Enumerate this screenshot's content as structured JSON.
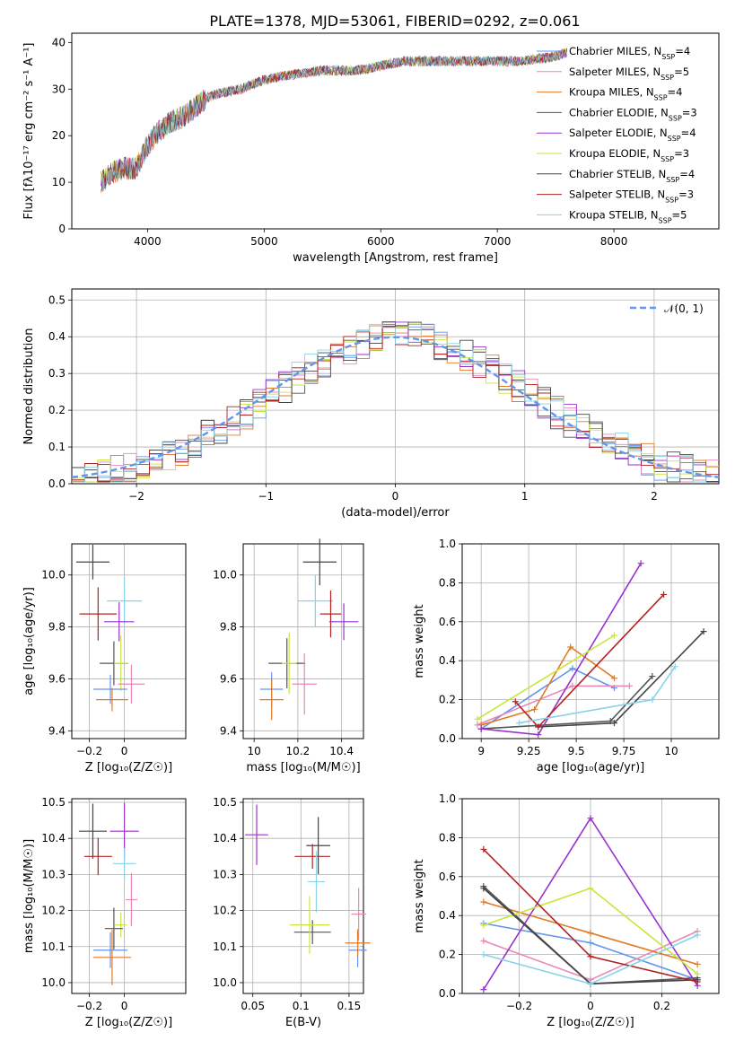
{
  "figure": {
    "title": "PLATE=1378, MJD=53061, FIBERID=0292, z=0.061"
  },
  "chart_data": [
    {
      "id": "spectrum",
      "type": "line",
      "xlabel": "wavelength [Angstrom, rest frame]",
      "ylabel": "Flux [fλ10⁻¹⁷ erg cm⁻² s⁻¹ A⁻¹]",
      "xlim": [
        3350,
        8900
      ],
      "ylim": [
        0,
        42
      ],
      "xticks": [
        4000,
        5000,
        6000,
        7000,
        8000
      ],
      "yticks": [
        0,
        10,
        20,
        30,
        40
      ],
      "grid": false,
      "legend_position": "lower-right",
      "x": [
        3600,
        3700,
        3800,
        3900,
        4000,
        4100,
        4200,
        4300,
        4400,
        4500,
        4600,
        4800,
        5000,
        5200,
        5500,
        5800,
        6000,
        6200,
        6500,
        6800,
        7000,
        7200,
        7500,
        7600
      ],
      "series": [
        {
          "name": "Chabrier MILES, N_SSP=4",
          "color": "#6495ed"
        },
        {
          "name": "Salpeter MILES, N_SSP=5",
          "color": "#e887b8"
        },
        {
          "name": "Kroupa MILES, N_SSP=4",
          "color": "#e07b28"
        },
        {
          "name": "Chabrier ELODIE, N_SSP=3",
          "color": "#555555"
        },
        {
          "name": "Salpeter ELODIE, N_SSP=4",
          "color": "#9932cc"
        },
        {
          "name": "Kroupa ELODIE, N_SSP=3",
          "color": "#c8e63c"
        },
        {
          "name": "Chabrier STELIB, N_SSP=4",
          "color": "#444444"
        },
        {
          "name": "Salpeter STELIB, N_SSP=3",
          "color": "#b22222"
        },
        {
          "name": "Kroupa STELIB, N_SSP=5",
          "color": "#87d3e8"
        }
      ],
      "flux": [
        10,
        12,
        13,
        13,
        18,
        21,
        23,
        24,
        26,
        28,
        29,
        30,
        32,
        33,
        34,
        34,
        35,
        36,
        36,
        36,
        36,
        36,
        37,
        38
      ]
    },
    {
      "id": "residuals",
      "type": "line",
      "xlabel": "(data-model)/error",
      "ylabel": "Normed distribution",
      "xlim": [
        -2.5,
        2.5
      ],
      "ylim": [
        0,
        0.53
      ],
      "xticks": [
        -2,
        -1,
        0,
        1,
        2
      ],
      "yticks": [
        0.0,
        0.1,
        0.2,
        0.3,
        0.4,
        0.5
      ],
      "grid": true,
      "legend_position": "top-right",
      "reference_label": "𝒩(0, 1)",
      "reference_color": "#6495ed"
    },
    {
      "id": "age-vs-Z",
      "type": "scatter",
      "xlabel": "Z [log₁₀(Z/Z☉)]",
      "ylabel": "age  [log₁₀(age/yr)]",
      "xlim": [
        -0.3,
        0.35
      ],
      "ylim": [
        9.37,
        10.12
      ],
      "xticks": [
        -0.2,
        0.0
      ],
      "yticks": [
        9.4,
        9.6,
        9.8,
        10.0
      ],
      "grid": true,
      "points": [
        {
          "color": "#444444",
          "x": -0.18,
          "y": 10.05
        },
        {
          "color": "#87d3e8",
          "x": 0.0,
          "y": 9.9
        },
        {
          "color": "#b22222",
          "x": -0.15,
          "y": 9.85
        },
        {
          "color": "#9932cc",
          "x": -0.03,
          "y": 9.82
        },
        {
          "color": "#555555",
          "x": -0.06,
          "y": 9.66
        },
        {
          "color": "#c8e63c",
          "x": -0.02,
          "y": 9.66
        },
        {
          "color": "#e887b8",
          "x": 0.04,
          "y": 9.58
        },
        {
          "color": "#6495ed",
          "x": -0.08,
          "y": 9.56
        },
        {
          "color": "#e07b28",
          "x": -0.07,
          "y": 9.52
        }
      ]
    },
    {
      "id": "age-vs-mass",
      "type": "scatter",
      "xlabel": "mass [log₁₀(M/M☉)]",
      "ylabel": "",
      "xlim": [
        9.95,
        10.5
      ],
      "ylim": [
        9.37,
        10.12
      ],
      "xticks": [
        10.0,
        10.2,
        10.4
      ],
      "yticks": [
        9.4,
        9.6,
        9.8,
        10.0
      ],
      "grid": true,
      "points": [
        {
          "color": "#444444",
          "x": 10.3,
          "y": 10.05
        },
        {
          "color": "#87d3e8",
          "x": 10.28,
          "y": 9.9
        },
        {
          "color": "#b22222",
          "x": 10.35,
          "y": 9.85
        },
        {
          "color": "#9932cc",
          "x": 10.41,
          "y": 9.82
        },
        {
          "color": "#555555",
          "x": 10.15,
          "y": 9.66
        },
        {
          "color": "#c8e63c",
          "x": 10.16,
          "y": 9.66
        },
        {
          "color": "#e887b8",
          "x": 10.23,
          "y": 9.58
        },
        {
          "color": "#6495ed",
          "x": 10.08,
          "y": 9.56
        },
        {
          "color": "#e07b28",
          "x": 10.08,
          "y": 9.52
        }
      ]
    },
    {
      "id": "weight-vs-age",
      "type": "line",
      "xlabel": "age  [log₁₀(age/yr)]",
      "ylabel": "mass weight",
      "xlim": [
        8.9,
        10.25
      ],
      "ylim": [
        0,
        1.0
      ],
      "xticks": [
        9.0,
        9.25,
        9.5,
        9.75,
        10.0
      ],
      "yticks": [
        0.0,
        0.2,
        0.4,
        0.6,
        0.8,
        1.0
      ],
      "grid": true,
      "series": [
        {
          "color": "#6495ed",
          "x": [
            9.0,
            9.48,
            9.7
          ],
          "y": [
            0.05,
            0.36,
            0.26
          ]
        },
        {
          "color": "#e887b8",
          "x": [
            8.98,
            9.48,
            9.78
          ],
          "y": [
            0.07,
            0.27,
            0.27
          ]
        },
        {
          "color": "#e07b28",
          "x": [
            9.0,
            9.28,
            9.47,
            9.7
          ],
          "y": [
            0.07,
            0.15,
            0.47,
            0.31
          ]
        },
        {
          "color": "#555555",
          "x": [
            9.0,
            9.68,
            9.9
          ],
          "y": [
            0.05,
            0.09,
            0.32
          ]
        },
        {
          "color": "#9932cc",
          "x": [
            9.0,
            9.3,
            9.84
          ],
          "y": [
            0.05,
            0.02,
            0.9
          ]
        },
        {
          "color": "#c8e63c",
          "x": [
            8.98,
            9.7
          ],
          "y": [
            0.1,
            0.53
          ]
        },
        {
          "color": "#444444",
          "x": [
            9.3,
            9.7,
            10.17
          ],
          "y": [
            0.06,
            0.08,
            0.55
          ]
        },
        {
          "color": "#b22222",
          "x": [
            9.18,
            9.3,
            9.96
          ],
          "y": [
            0.19,
            0.06,
            0.74
          ]
        },
        {
          "color": "#87d3e8",
          "x": [
            9.2,
            9.9,
            10.02
          ],
          "y": [
            0.08,
            0.2,
            0.37
          ]
        }
      ]
    },
    {
      "id": "mass-vs-Z",
      "type": "scatter",
      "xlabel": "Z [log₁₀(Z/Z☉)]",
      "ylabel": "mass [log₁₀(M/M☉)]",
      "xlim": [
        -0.3,
        0.35
      ],
      "ylim": [
        9.97,
        10.51
      ],
      "xticks": [
        -0.2,
        0.0
      ],
      "yticks": [
        10.0,
        10.1,
        10.2,
        10.3,
        10.4,
        10.5
      ],
      "grid": true,
      "points": [
        {
          "color": "#444444",
          "x": -0.18,
          "y": 10.42
        },
        {
          "color": "#9932cc",
          "x": 0.0,
          "y": 10.42
        },
        {
          "color": "#b22222",
          "x": -0.15,
          "y": 10.35
        },
        {
          "color": "#87d3e8",
          "x": 0.0,
          "y": 10.33
        },
        {
          "color": "#e887b8",
          "x": 0.04,
          "y": 10.23
        },
        {
          "color": "#c8e63c",
          "x": -0.02,
          "y": 10.16
        },
        {
          "color": "#555555",
          "x": -0.06,
          "y": 10.15
        },
        {
          "color": "#6495ed",
          "x": -0.08,
          "y": 10.09
        },
        {
          "color": "#e07b28",
          "x": -0.07,
          "y": 10.07
        }
      ]
    },
    {
      "id": "mass-vs-EBV",
      "type": "scatter",
      "xlabel": "E(B-V)",
      "ylabel": "",
      "xlim": [
        0.04,
        0.165
      ],
      "ylim": [
        9.97,
        10.51
      ],
      "xticks": [
        0.05,
        0.1,
        0.15
      ],
      "yticks": [
        10.0,
        10.1,
        10.2,
        10.3,
        10.4,
        10.5
      ],
      "grid": true,
      "points": [
        {
          "color": "#9932cc",
          "x": 0.054,
          "y": 10.41
        },
        {
          "color": "#444444",
          "x": 0.118,
          "y": 10.38
        },
        {
          "color": "#b22222",
          "x": 0.112,
          "y": 10.35
        },
        {
          "color": "#87d3e8",
          "x": 0.116,
          "y": 10.28
        },
        {
          "color": "#e887b8",
          "x": 0.16,
          "y": 10.19
        },
        {
          "color": "#555555",
          "x": 0.112,
          "y": 10.14
        },
        {
          "color": "#c8e63c",
          "x": 0.109,
          "y": 10.16
        },
        {
          "color": "#6495ed",
          "x": 0.159,
          "y": 10.09
        },
        {
          "color": "#e07b28",
          "x": 0.159,
          "y": 10.11
        }
      ]
    },
    {
      "id": "weight-vs-Z",
      "type": "line",
      "xlabel": "Z [log₁₀(Z/Z☉)]",
      "ylabel": "mass weight",
      "xlim": [
        -0.36,
        0.36
      ],
      "ylim": [
        0,
        1.0
      ],
      "xticks": [
        -0.2,
        0.0,
        0.2
      ],
      "yticks": [
        0.0,
        0.2,
        0.4,
        0.6,
        0.8,
        1.0
      ],
      "grid": true,
      "series": [
        {
          "color": "#6495ed",
          "x": [
            -0.3,
            0.0,
            0.3
          ],
          "y": [
            0.36,
            0.26,
            0.07
          ]
        },
        {
          "color": "#e887b8",
          "x": [
            -0.3,
            0.0,
            0.3
          ],
          "y": [
            0.27,
            0.07,
            0.32
          ]
        },
        {
          "color": "#e07b28",
          "x": [
            -0.3,
            0.0,
            0.3
          ],
          "y": [
            0.47,
            0.31,
            0.15
          ]
        },
        {
          "color": "#555555",
          "x": [
            -0.3,
            0.0,
            0.3
          ],
          "y": [
            0.55,
            0.05,
            0.08
          ]
        },
        {
          "color": "#9932cc",
          "x": [
            -0.3,
            0.0,
            0.3
          ],
          "y": [
            0.02,
            0.9,
            0.04
          ]
        },
        {
          "color": "#c8e63c",
          "x": [
            -0.3,
            0.0,
            0.3
          ],
          "y": [
            0.35,
            0.54,
            0.1
          ]
        },
        {
          "color": "#444444",
          "x": [
            -0.3,
            0.0,
            0.3
          ],
          "y": [
            0.54,
            0.05,
            0.07
          ]
        },
        {
          "color": "#b22222",
          "x": [
            -0.3,
            0.0,
            0.3
          ],
          "y": [
            0.74,
            0.19,
            0.06
          ]
        },
        {
          "color": "#87d3e8",
          "x": [
            -0.3,
            0.0,
            0.3
          ],
          "y": [
            0.2,
            0.05,
            0.3
          ]
        }
      ]
    }
  ]
}
